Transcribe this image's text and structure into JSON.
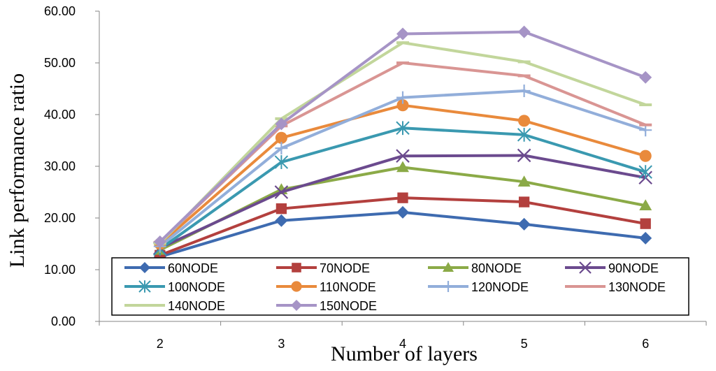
{
  "chart_data": {
    "type": "line",
    "title": "",
    "xlabel": "Number of layers",
    "ylabel": "Link performance ratio",
    "categories": [
      "2",
      "3",
      "4",
      "5",
      "6"
    ],
    "ylim": [
      0,
      60
    ],
    "yticks": [
      "0.00",
      "10.00",
      "20.00",
      "30.00",
      "40.00",
      "50.00",
      "60.00"
    ],
    "grid": false,
    "legend_position": "bottom-inside",
    "series": [
      {
        "name": "60NODE",
        "values": [
          12.5,
          19.5,
          21.1,
          18.8,
          16.1
        ],
        "color": "#3E6BB0",
        "marker": "diamond"
      },
      {
        "name": "70NODE",
        "values": [
          12.8,
          21.8,
          23.9,
          23.1,
          18.9
        ],
        "color": "#B3403E",
        "marker": "square"
      },
      {
        "name": "80NODE",
        "values": [
          13.8,
          25.5,
          29.8,
          27.0,
          22.4
        ],
        "color": "#8BAA47",
        "marker": "triangle"
      },
      {
        "name": "90NODE",
        "values": [
          14.2,
          25.0,
          32.0,
          32.1,
          27.8
        ],
        "color": "#6B4A8E",
        "marker": "x"
      },
      {
        "name": "100NODE",
        "values": [
          14.0,
          30.8,
          37.4,
          36.1,
          28.9
        ],
        "color": "#3A99B0",
        "marker": "asterisk"
      },
      {
        "name": "110NODE",
        "values": [
          15.0,
          35.5,
          41.8,
          38.8,
          32.0
        ],
        "color": "#E98A3C",
        "marker": "circle"
      },
      {
        "name": "120NODE",
        "values": [
          14.5,
          33.5,
          43.3,
          44.6,
          37.0
        ],
        "color": "#92AEDA",
        "marker": "plus"
      },
      {
        "name": "130NODE",
        "values": [
          15.3,
          37.8,
          50.0,
          47.5,
          38.0
        ],
        "color": "#D99593",
        "marker": "dash"
      },
      {
        "name": "140NODE",
        "values": [
          15.1,
          39.2,
          53.9,
          50.2,
          41.9
        ],
        "color": "#C2D69B",
        "marker": "dash"
      },
      {
        "name": "150NODE",
        "values": [
          15.4,
          38.2,
          55.6,
          56.0,
          47.2
        ],
        "color": "#A694C6",
        "marker": "diamond"
      }
    ]
  }
}
